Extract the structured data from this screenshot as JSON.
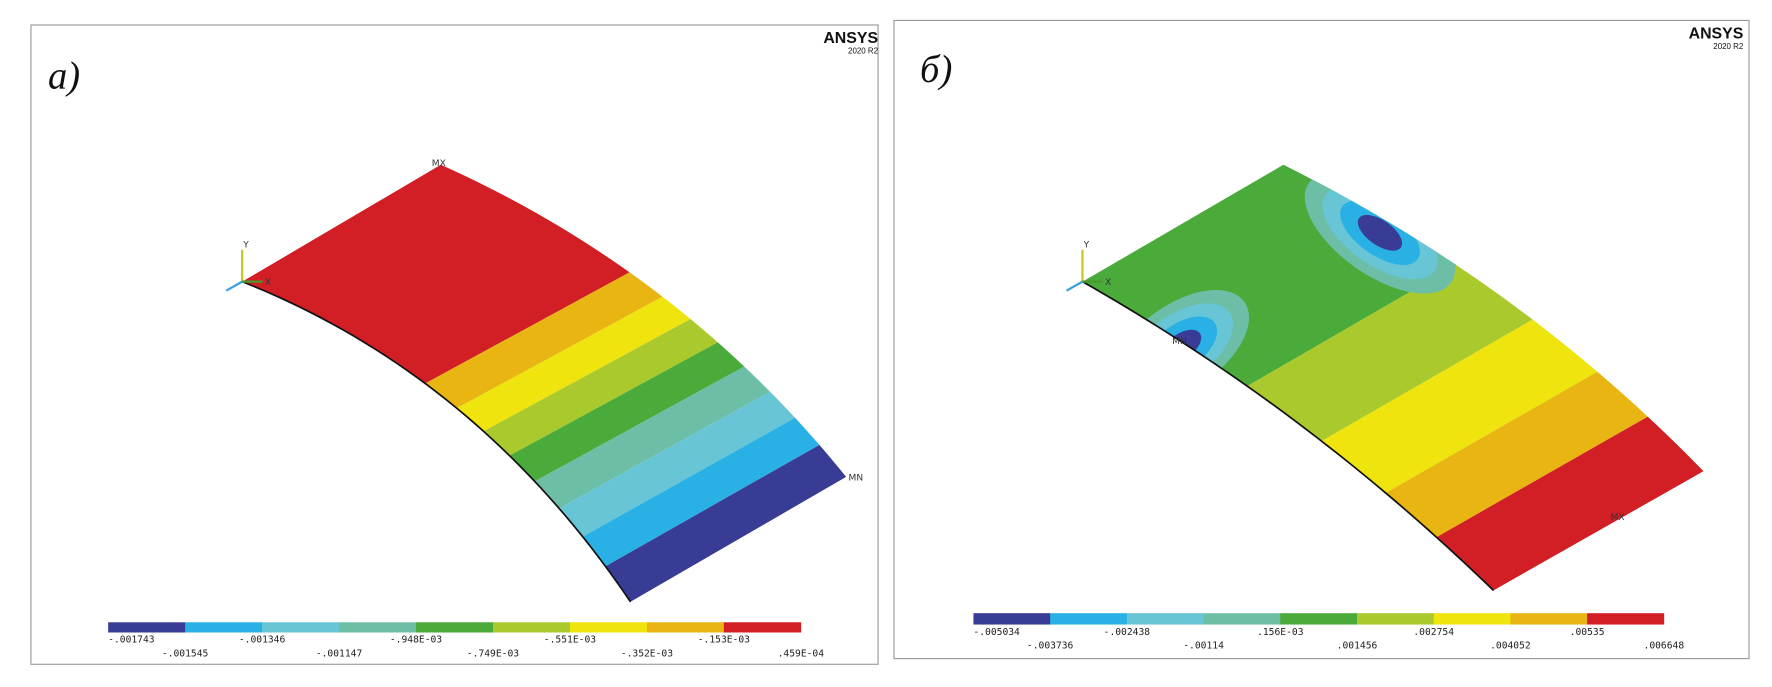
{
  "panels": [
    {
      "label": "а)",
      "logo": "ANSYS",
      "version": "2020 R2",
      "max_marker": "MX",
      "min_marker": "MN",
      "axis_x": "X",
      "axis_y": "Y",
      "legend": {
        "colors": [
          "#383c95",
          "#29b0e4",
          "#67c5d5",
          "#6cbfa6",
          "#4aab3a",
          "#aac92c",
          "#f0e40e",
          "#e8b512",
          "#d21f26"
        ],
        "labels": [
          "-.001743",
          "-.001545",
          "-.001346",
          "-.001147",
          "-.948E-03",
          "-.749E-03",
          "-.551E-03",
          "-.352E-03",
          "-.153E-03",
          ".459E-04"
        ]
      }
    },
    {
      "label": "б)",
      "logo": "ANSYS",
      "version": "2020 R2",
      "max_marker": "MX",
      "min_marker": "MN",
      "axis_x": "X",
      "axis_y": "Y",
      "legend": {
        "colors": [
          "#383c95",
          "#29b0e4",
          "#67c5d5",
          "#6cbfa6",
          "#4aab3a",
          "#aac92c",
          "#f0e40e",
          "#e8b512",
          "#d21f26"
        ],
        "labels": [
          "-.005034",
          "-.003736",
          "-.002438",
          "-.00114",
          ".156E-03",
          ".001456",
          ".002754",
          ".004052",
          ".00535",
          ".006648"
        ]
      }
    }
  ]
}
